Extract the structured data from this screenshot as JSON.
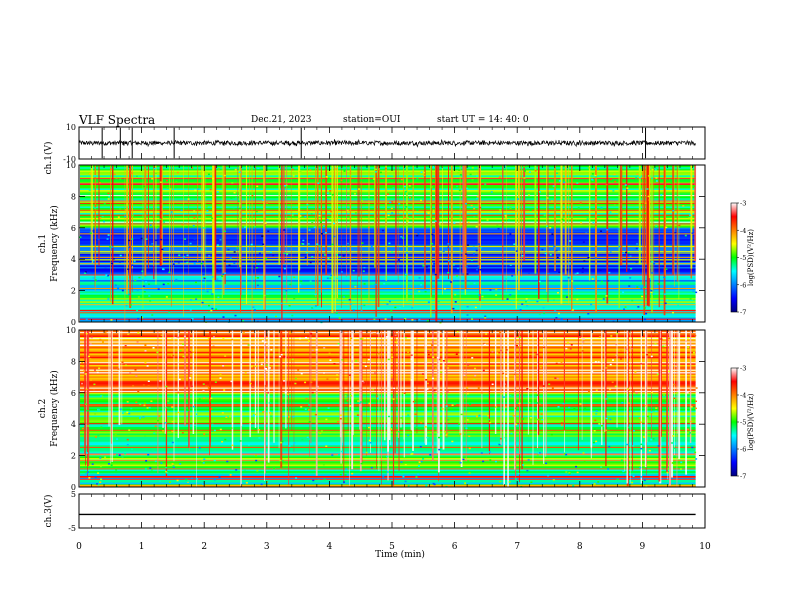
{
  "header": {
    "title": "VLF Spectra",
    "date": "Dec.21, 2023",
    "station": "station=OUI",
    "start": "start UT =   14: 40: 0"
  },
  "chart_data": [
    {
      "type": "line",
      "name": "ch1-waveform",
      "ylabel": "ch.1(V)",
      "ylim": [
        -10,
        10
      ],
      "yticks": [
        "10",
        "-10"
      ],
      "xlim": [
        0,
        10
      ],
      "baseline_v": 0,
      "spike_times_min": [
        0.37,
        0.66,
        0.85,
        1.52,
        3.55,
        9.05
      ]
    },
    {
      "type": "heatmap",
      "name": "ch1-spectrogram",
      "ylabel": "ch.1\nFrequency (kHz)",
      "ylim": [
        0,
        10
      ],
      "yticks": [
        "0",
        "2",
        "4",
        "6",
        "8",
        "10"
      ],
      "xlim": [
        0,
        10
      ],
      "data_xmax": 9.85,
      "colorbar": {
        "label": "log(PSD)(V²/Hz)",
        "range": [
          -7,
          -3
        ],
        "ticks": [
          "-3",
          "-4",
          "-5",
          "-6",
          "-7"
        ]
      },
      "description_levels": {
        "low_band_kHz_0_3": -5.6,
        "mid_band_kHz_3_6": -6.2,
        "high_band_kHz_6_10": -5.0
      }
    },
    {
      "type": "heatmap",
      "name": "ch2-spectrogram",
      "ylabel": "ch.2\nFrequency (kHz)",
      "ylim": [
        0,
        10
      ],
      "yticks": [
        "0",
        "2",
        "4",
        "6",
        "8",
        "10"
      ],
      "xlim": [
        0,
        10
      ],
      "data_xmax": 9.85,
      "colorbar": {
        "label": "log(PSD)(V²/Hz)",
        "range": [
          -7,
          -3
        ],
        "ticks": [
          "-3",
          "-4",
          "-5",
          "-6",
          "-7"
        ]
      },
      "description_levels": {
        "low_band_kHz_0_3": -5.5,
        "mid_band_kHz_3_6": -5.0,
        "high_band_kHz_6_10": -4.0
      }
    },
    {
      "type": "line",
      "name": "ch3-waveform",
      "ylabel": "ch.3(V)",
      "ylim": [
        -5,
        5
      ],
      "yticks": [
        "5",
        "-5"
      ],
      "xlim": [
        0,
        10
      ],
      "constant_value_v": -1
    }
  ],
  "xaxis": {
    "label": "Time (min)",
    "ticks": [
      "0",
      "1",
      "2",
      "3",
      "4",
      "5",
      "6",
      "7",
      "8",
      "9",
      "10"
    ]
  },
  "colors": {
    "axis": "#000000",
    "background": "#ffffff"
  }
}
